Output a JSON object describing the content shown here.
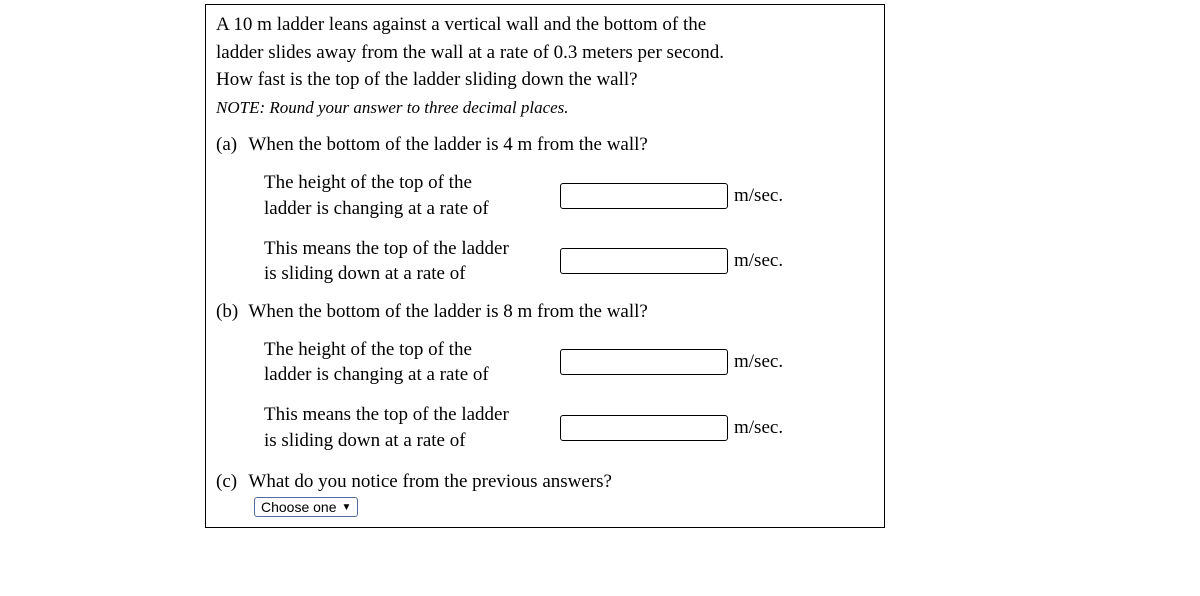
{
  "intro": {
    "line1": "A 10 m ladder leans against a vertical wall and the bottom of the",
    "line2": "ladder slides away from the wall at a rate of 0.3 meters per second.",
    "line3": "How fast is the top of the ladder sliding down the wall?",
    "note": "NOTE: Round your answer to three decimal places."
  },
  "partA": {
    "label": "(a)",
    "question": "When the bottom of the ladder is 4 m from the wall?",
    "row1": {
      "text_line1": "The height of the top of the",
      "text_line2": "ladder is changing at a rate of",
      "value": "",
      "unit": "m/sec."
    },
    "row2": {
      "text_line1": "This means the top of the ladder",
      "text_line2": "is sliding down at a rate of",
      "value": "",
      "unit": "m/sec."
    }
  },
  "partB": {
    "label": "(b)",
    "question": "When the bottom of the ladder is 8 m from the wall?",
    "row1": {
      "text_line1": "The height of the top of the",
      "text_line2": "ladder is changing at a rate of",
      "value": "",
      "unit": "m/sec."
    },
    "row2": {
      "text_line1": "This means the top of the ladder",
      "text_line2": "is sliding down at a rate of",
      "value": "",
      "unit": "m/sec."
    }
  },
  "partC": {
    "label": "(c)",
    "question": "What do you notice from the previous answers?",
    "dropdown_label": "Choose one",
    "dropdown_caret": "▼"
  }
}
